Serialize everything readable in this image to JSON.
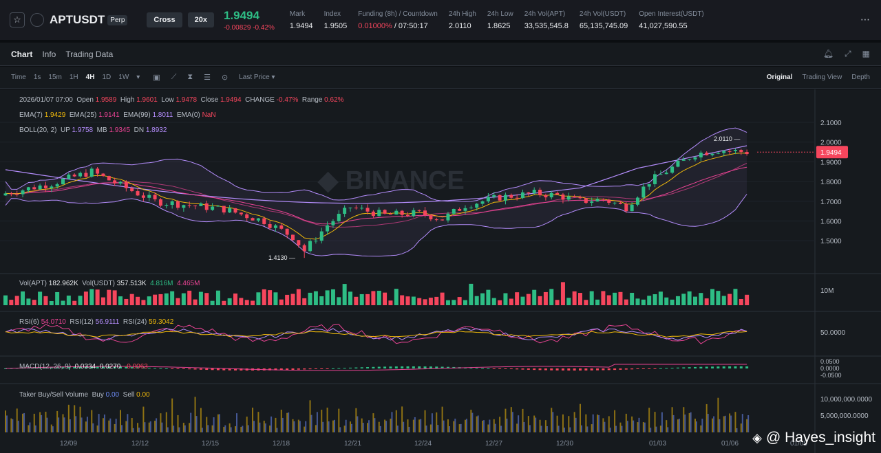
{
  "ticker": {
    "symbol": "APTUSDT",
    "contract_type": "Perp",
    "margin_mode": "Cross",
    "leverage": "20x",
    "last_price": "1.9494",
    "change": "-0.00829",
    "change_pct": "-0.42%",
    "stats": [
      {
        "label": "Mark",
        "value": "1.9494"
      },
      {
        "label": "Index",
        "value": "1.9505"
      },
      {
        "label": "Funding (8h) / Countdown",
        "value": "0.01000%",
        "value2": " / 07:50:17"
      },
      {
        "label": "24h High",
        "value": "2.0110"
      },
      {
        "label": "24h Low",
        "value": "1.8625"
      },
      {
        "label": "24h Vol(APT)",
        "value": "33,535,545.8"
      },
      {
        "label": "24h Vol(USDT)",
        "value": "65,135,745.09"
      },
      {
        "label": "Open Interest(USDT)",
        "value": "41,027,590.55"
      }
    ]
  },
  "tabs": [
    "Chart",
    "Info",
    "Trading Data"
  ],
  "toolbar": {
    "timeframes": [
      "Time",
      "1s",
      "15m",
      "1H",
      "4H",
      "1D",
      "1W"
    ],
    "active_timeframe": "4H",
    "price_type": "Last Price",
    "views": [
      "Original",
      "Trading View",
      "Depth"
    ]
  },
  "legend": {
    "ohlc": {
      "date": "2026/01/07 07:00",
      "open": "1.9589",
      "high": "1.9601",
      "low": "1.9478",
      "close": "1.9494",
      "change": "-0.47%",
      "range": "0.62%"
    },
    "ema": [
      {
        "label": "EMA(7)",
        "value": "1.9429"
      },
      {
        "label": "EMA(25)",
        "value": "1.9141"
      },
      {
        "label": "EMA(99)",
        "value": "1.8011"
      },
      {
        "label": "EMA(0)",
        "value": "NaN"
      }
    ],
    "boll": {
      "label": "BOLL(20, 2)",
      "up": "1.9758",
      "mb": "1.9345",
      "dn": "1.8932"
    },
    "vol": {
      "apt_label": "Vol(APT)",
      "apt": "182.962K",
      "usdt_label": "Vol(USDT)",
      "usdt": "357.513K",
      "ma1": "4.816M",
      "ma2": "4.465M"
    },
    "rsi": [
      {
        "label": "RSI(6)",
        "value": "54.0710"
      },
      {
        "label": "RSI(12)",
        "value": "56.9111"
      },
      {
        "label": "RSI(24)",
        "value": "59.3042"
      }
    ],
    "macd": {
      "label": "MACD(12, 26, 9)",
      "v1": "0.0334",
      "v2": "0.0270",
      "v3": "-0.0063"
    },
    "taker": {
      "label": "Taker Buy/Sell Volume",
      "buy_label": "Buy",
      "buy": "0.00",
      "sell_label": "Sell",
      "sell": "0.00"
    }
  },
  "axes": {
    "price_ticks": [
      "2.1000",
      "2.0000",
      "1.9000",
      "1.8000",
      "1.7000",
      "1.6000",
      "1.5000"
    ],
    "current_price_tag": "1.9494",
    "high_marker": "2.0110",
    "low_marker": "1.4130",
    "vol_tick": "10M",
    "rsi_tick": "50.0000",
    "macd_ticks": [
      "0.0500",
      "0.0000",
      "-0.0500"
    ],
    "taker_ticks": [
      "10,000,000.0000",
      "5,000,000.0000"
    ],
    "date_ticks": [
      "12/09",
      "12/12",
      "12/15",
      "12/18",
      "12/21",
      "12/24",
      "12/27",
      "12/30",
      "01/03",
      "01/06",
      "01/09"
    ]
  },
  "watermark": {
    "logo_text": "BINANCE",
    "handle": "@ Hayes_insight"
  },
  "colors": {
    "up": "#2ebd85",
    "down": "#f6465d",
    "ema7": "#f0b90b",
    "ema25": "#e84393",
    "ema99": "#b48dfc",
    "boll": "#b48dfc"
  }
}
